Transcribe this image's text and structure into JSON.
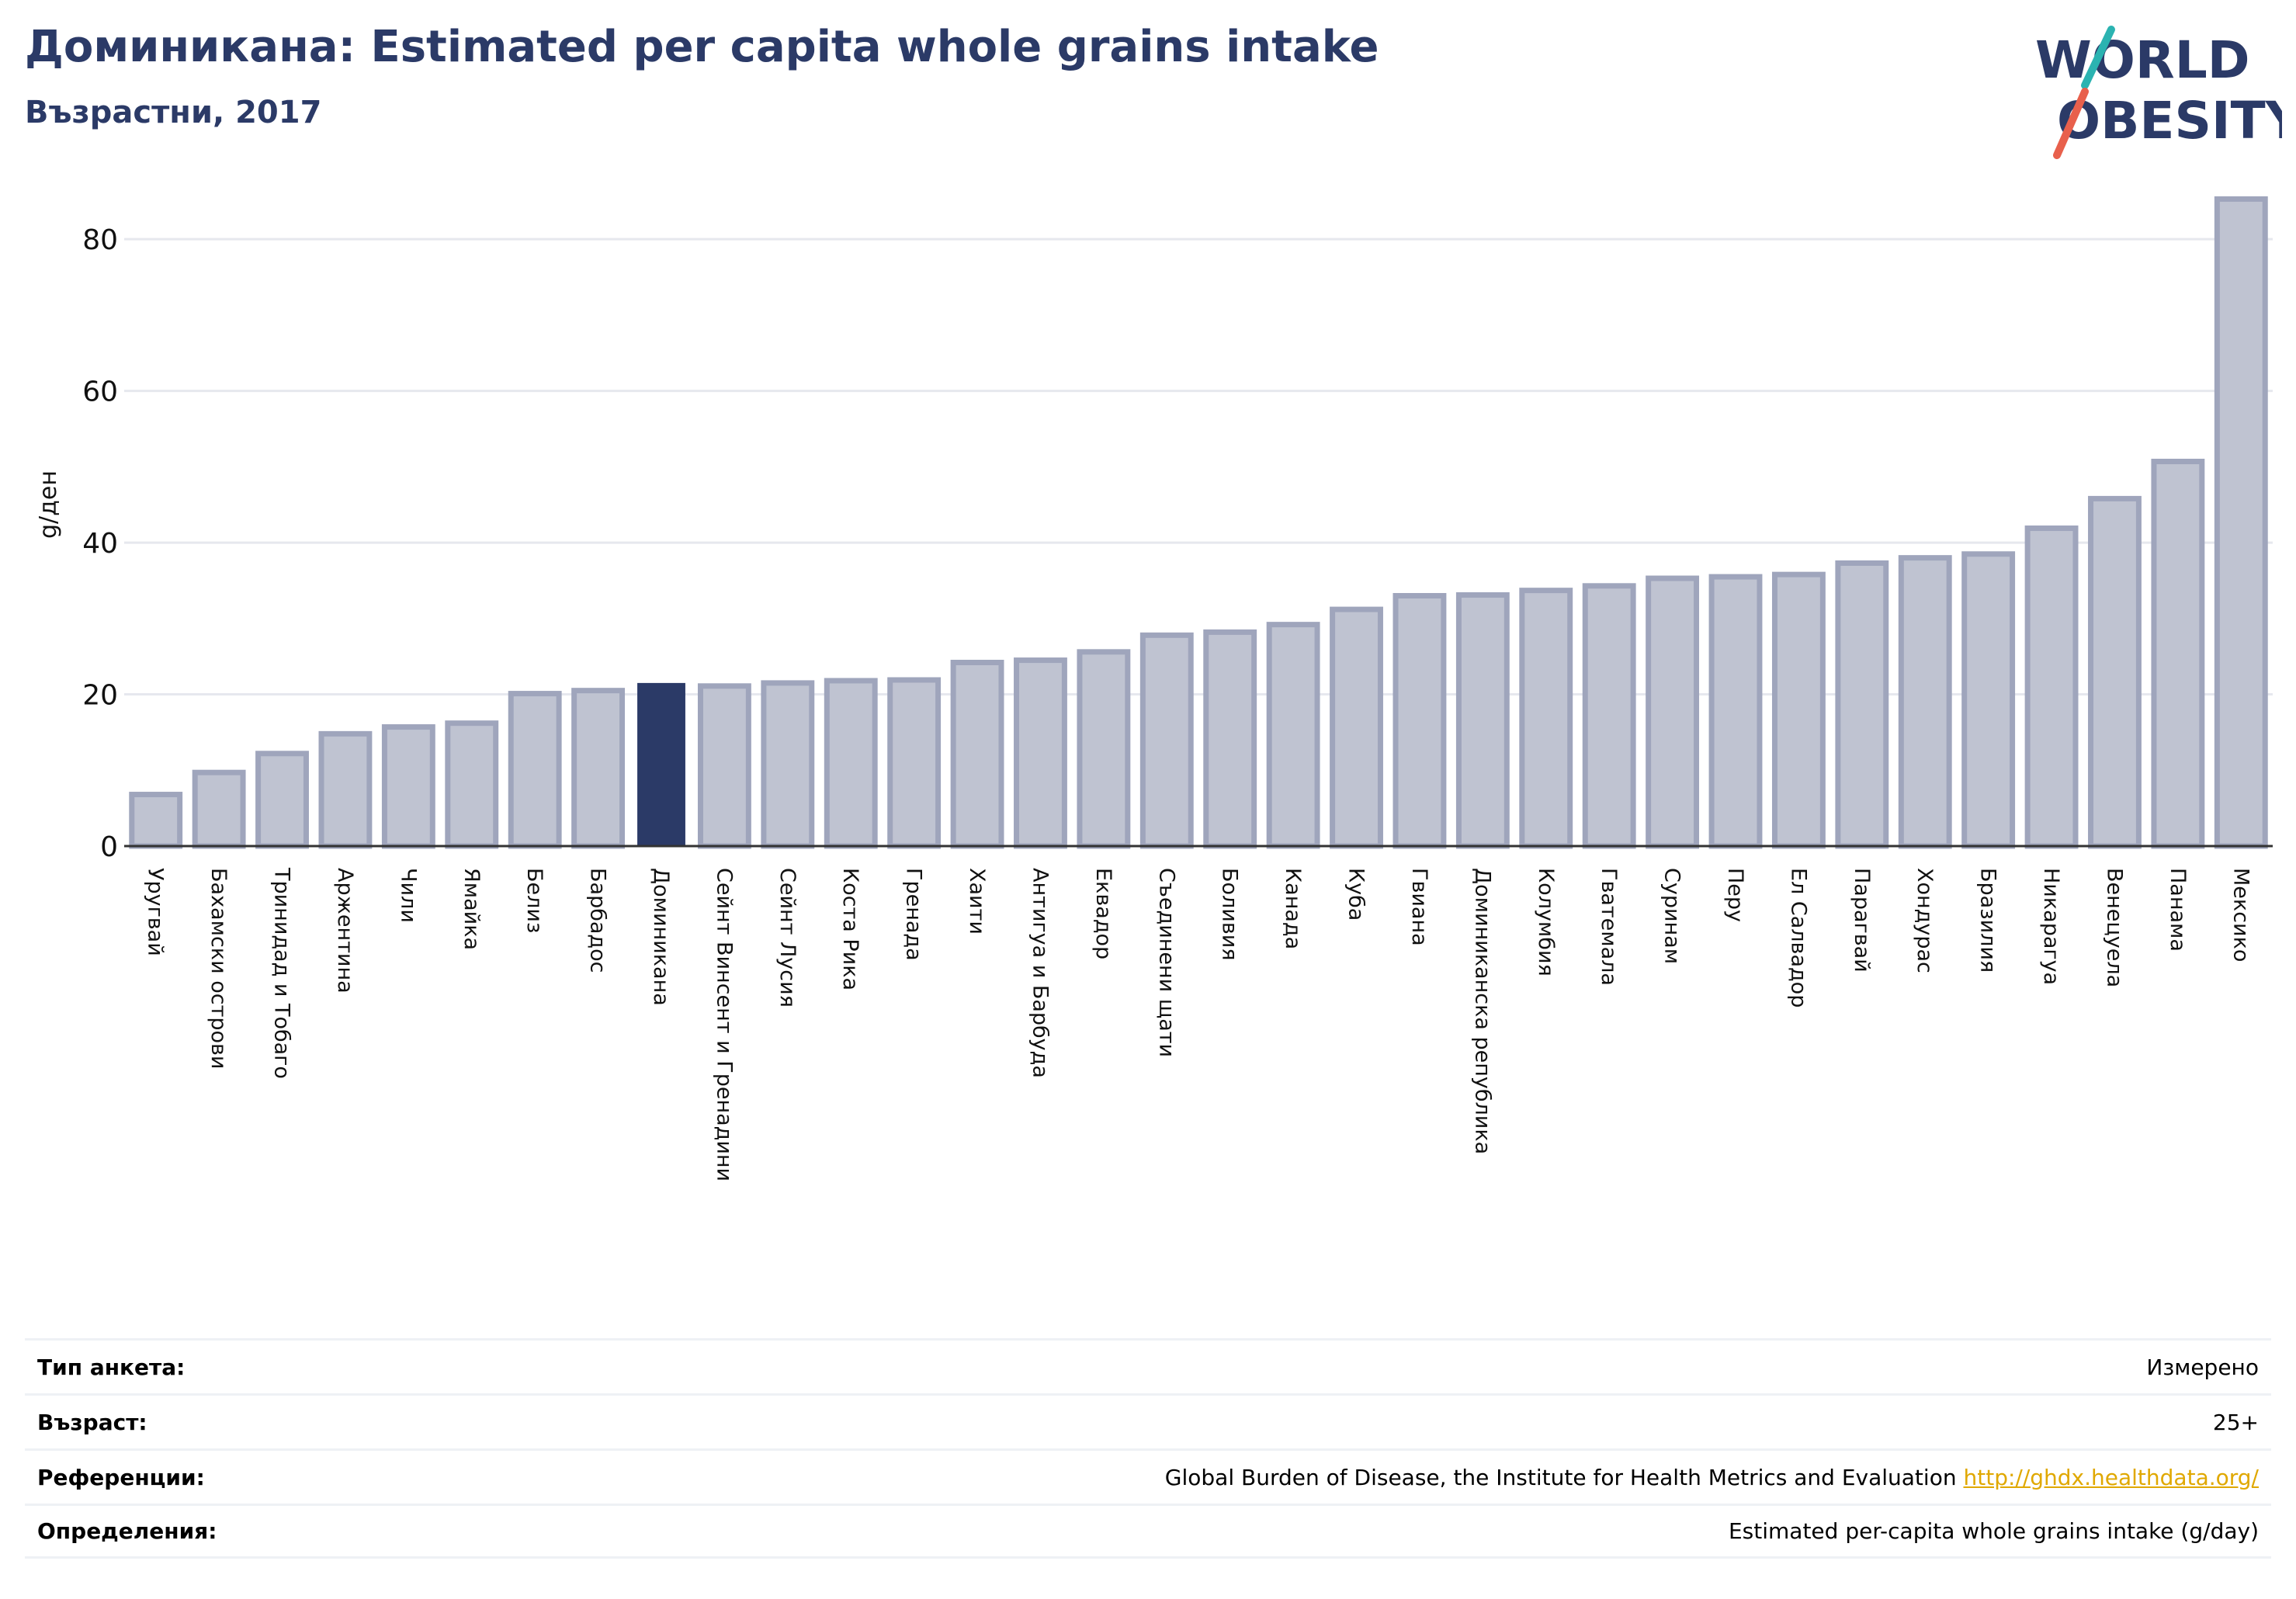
{
  "header": {
    "title": "Доминикана: Estimated per capita whole grains intake",
    "subtitle": "Възрастни, 2017"
  },
  "logo": {
    "line1": "WORLD",
    "line2": "OBESITY",
    "colors": {
      "text": "#2b3a67",
      "slash_top": "#2bb3b1",
      "slash_bottom": "#e8604c"
    }
  },
  "colors": {
    "bar": "#bfc3d1",
    "bar_border": "#9fa5bc",
    "highlight": "#2b3a67",
    "grid": "#e6e8ee",
    "axis": "#333333"
  },
  "chart_data": {
    "type": "bar",
    "ylabel": "g/ден",
    "ylim": [
      0,
      88
    ],
    "yticks": [
      0,
      20,
      40,
      60,
      80
    ],
    "grid": true,
    "highlight": "Доминикана",
    "categories": [
      "Уругвай",
      "Бахамски острови",
      "Тринидад и Тобаго",
      "Аржентина",
      "Чили",
      "Ямайка",
      "Белиз",
      "Барбадос",
      "Доминикана",
      "Сейнт Винсент и Гренадини",
      "Сейнт Лусия",
      "Коста Рика",
      "Гренада",
      "Хаити",
      "Антигуа и Барбуда",
      "Еквадор",
      "Съединени щати",
      "Боливия",
      "Канада",
      "Куба",
      "Гвиана",
      "Доминиканска република",
      "Колумбия",
      "Гватемала",
      "Суринам",
      "Перу",
      "Ел Салвадор",
      "Парагвай",
      "Хондурас",
      "Бразилия",
      "Никарагуа",
      "Венецуела",
      "Панама",
      "Мексико"
    ],
    "values": [
      6.8,
      9.7,
      12.2,
      14.8,
      15.7,
      16.2,
      20.1,
      20.5,
      21.5,
      21.1,
      21.5,
      21.8,
      21.9,
      24.2,
      24.5,
      25.6,
      27.8,
      28.2,
      29.2,
      31.2,
      33.0,
      33.1,
      33.7,
      34.3,
      35.3,
      35.5,
      35.8,
      37.3,
      38.0,
      38.5,
      41.9,
      45.8,
      50.7,
      85.3
    ]
  },
  "info": [
    {
      "label": "Тип анкета:",
      "value": "Измерено"
    },
    {
      "label": "Възраст:",
      "value": "25+"
    },
    {
      "label": "Референции:",
      "value": "Global Burden of Disease, the Institute for Health Metrics and Evaluation",
      "link": "http://ghdx.healthdata.org/"
    },
    {
      "label": "Определения:",
      "value": "Estimated per-capita whole grains intake (g/day)"
    }
  ]
}
